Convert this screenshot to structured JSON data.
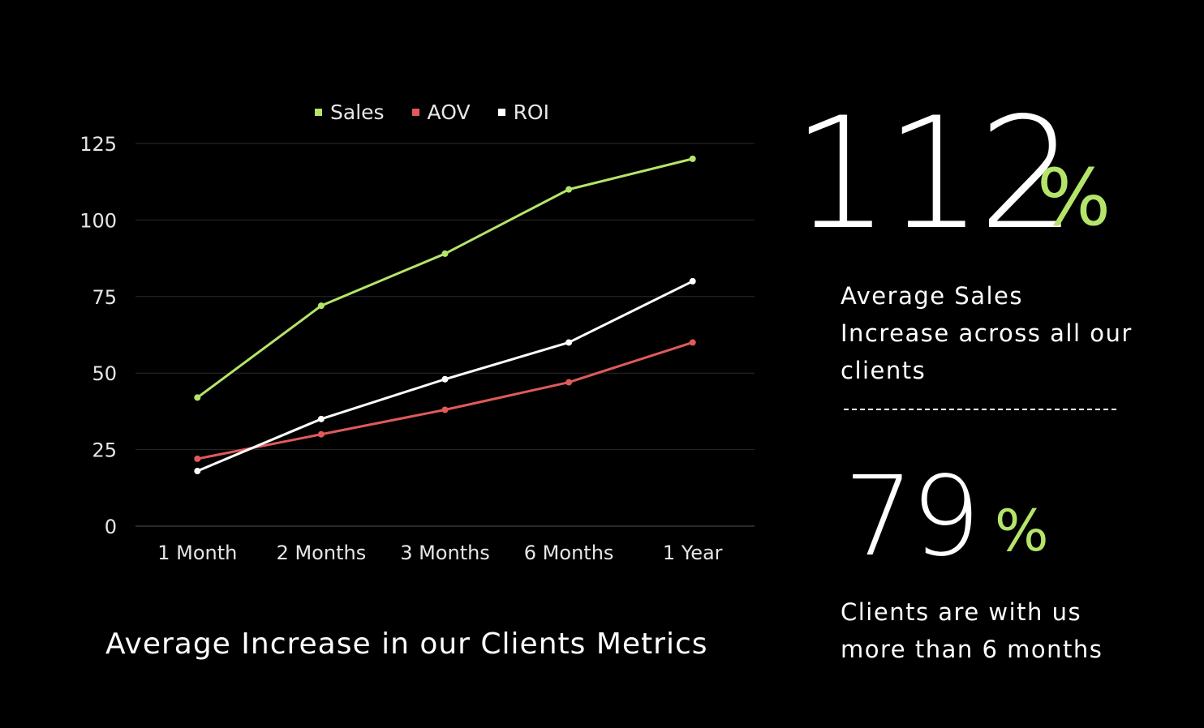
{
  "chart_data": {
    "type": "line",
    "title": "",
    "caption": "Average Increase in our Clients Metrics",
    "xlabel": "",
    "ylabel": "",
    "categories": [
      "1 Month",
      "2 Months",
      "3 Months",
      "6 Months",
      "1 Year"
    ],
    "ylim": [
      0,
      125
    ],
    "yticks": [
      "0",
      "25",
      "50",
      "75",
      "100",
      "125"
    ],
    "grid": true,
    "legend_position": "top",
    "series": [
      {
        "name": "Sales",
        "color": "#b5e46a",
        "values": [
          42,
          72,
          89,
          110,
          120
        ]
      },
      {
        "name": "AOV",
        "color": "#e05a5a",
        "values": [
          22,
          30,
          38,
          47,
          60
        ]
      },
      {
        "name": "ROI",
        "color": "#ffffff",
        "values": [
          18,
          35,
          48,
          60,
          80
        ]
      }
    ]
  },
  "stats": [
    {
      "value": "112",
      "unit": "%",
      "description": "Average Sales Increase across all our clients"
    },
    {
      "value": "79",
      "unit": "%",
      "description": "Clients are with us more than 6 months"
    }
  ],
  "colors": {
    "accent": "#b5e46a",
    "background": "#000000"
  }
}
